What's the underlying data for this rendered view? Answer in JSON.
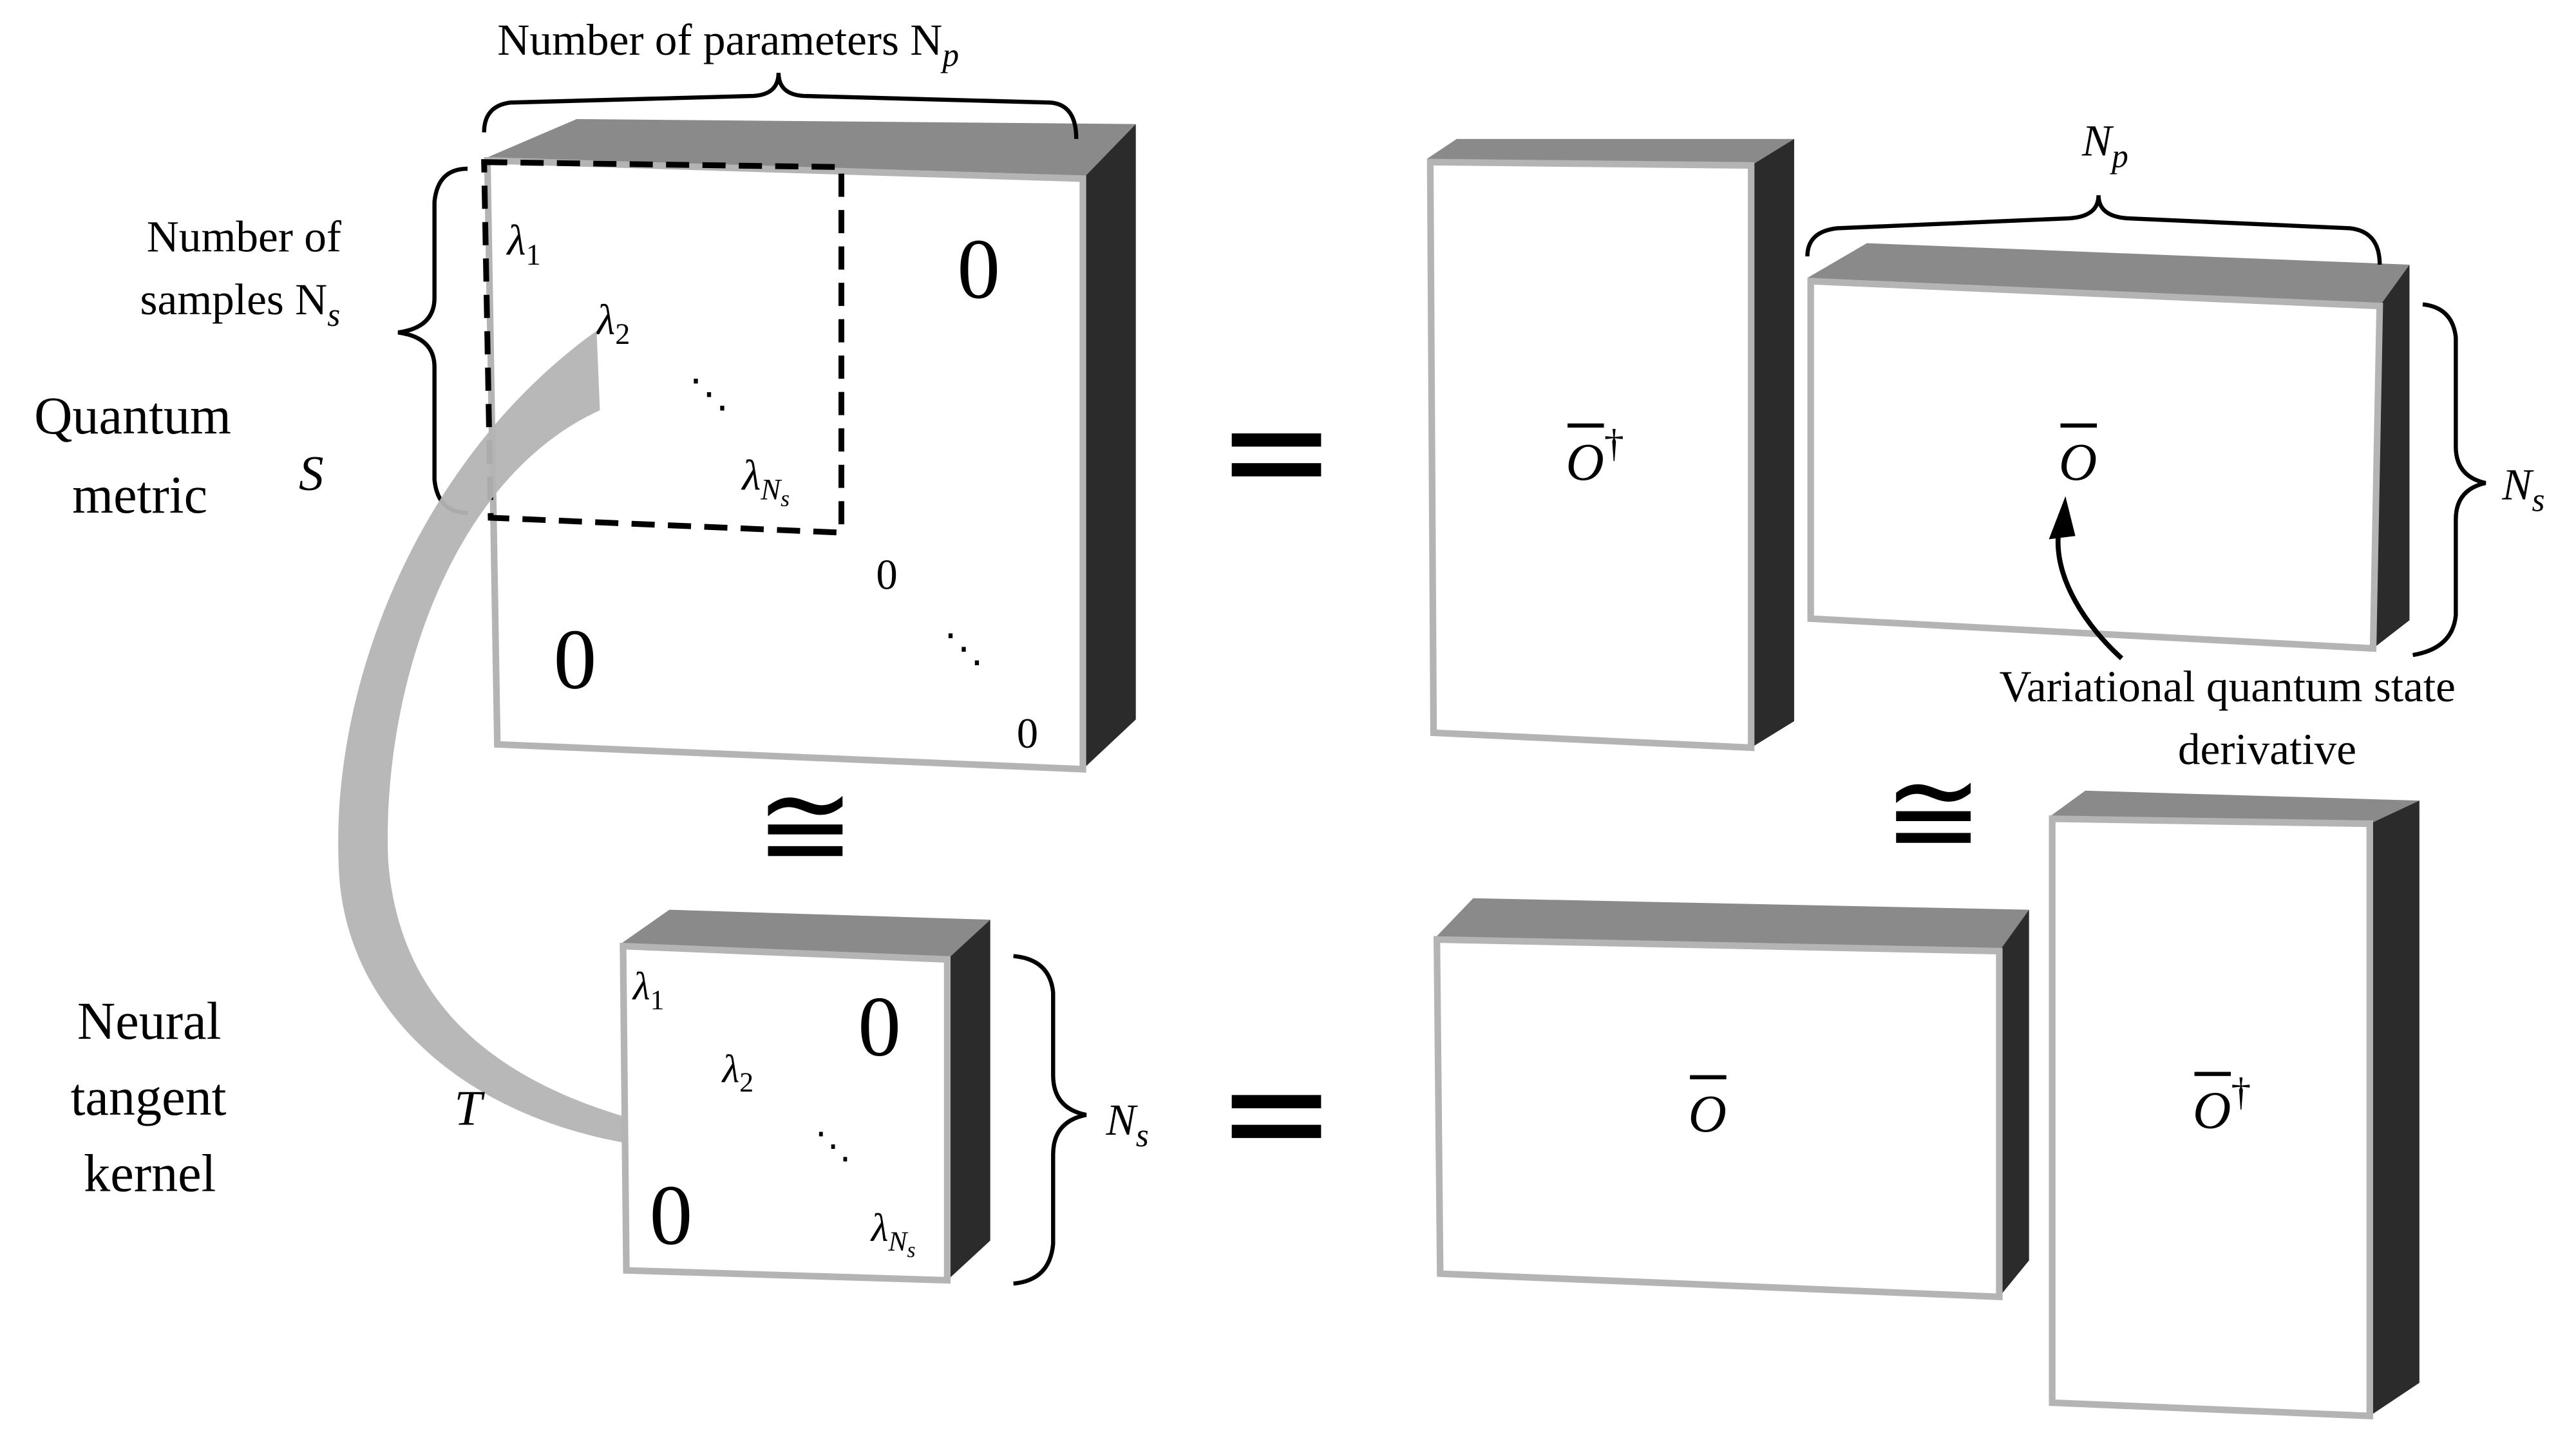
{
  "colors": {
    "cube_top": "#8a8a8a",
    "cube_side": "#2b2b2b",
    "cube_front_border": "#b4b4b4",
    "curved_arrow": "#b4b4b4"
  },
  "top_label": "Number of parameters N",
  "top_label_sub": "p",
  "samples_label_line1": "Number of",
  "samples_label_line2": "samples N",
  "samples_label_sub": "s",
  "quantum_metric_line1": "Quantum",
  "quantum_metric_line2": "metric",
  "S": "S",
  "neural_line1": "Neural",
  "neural_line2": "tangent",
  "neural_line3": "kernel",
  "T": "T",
  "equals": "=",
  "cong": "≅",
  "zero": "0",
  "ellipsis": "⋱",
  "lambda": "λ",
  "lambda1_sub": "1",
  "lambda2_sub": "2",
  "lambdaN_sub": "N",
  "lambdaN_subsub": "s",
  "O": "O",
  "dagger": "†",
  "Np_label": "N",
  "Np_sub": "p",
  "Ns_label": "N",
  "Ns_sub": "s",
  "variational_line1": "Variational quantum state",
  "variational_line2": "derivative"
}
